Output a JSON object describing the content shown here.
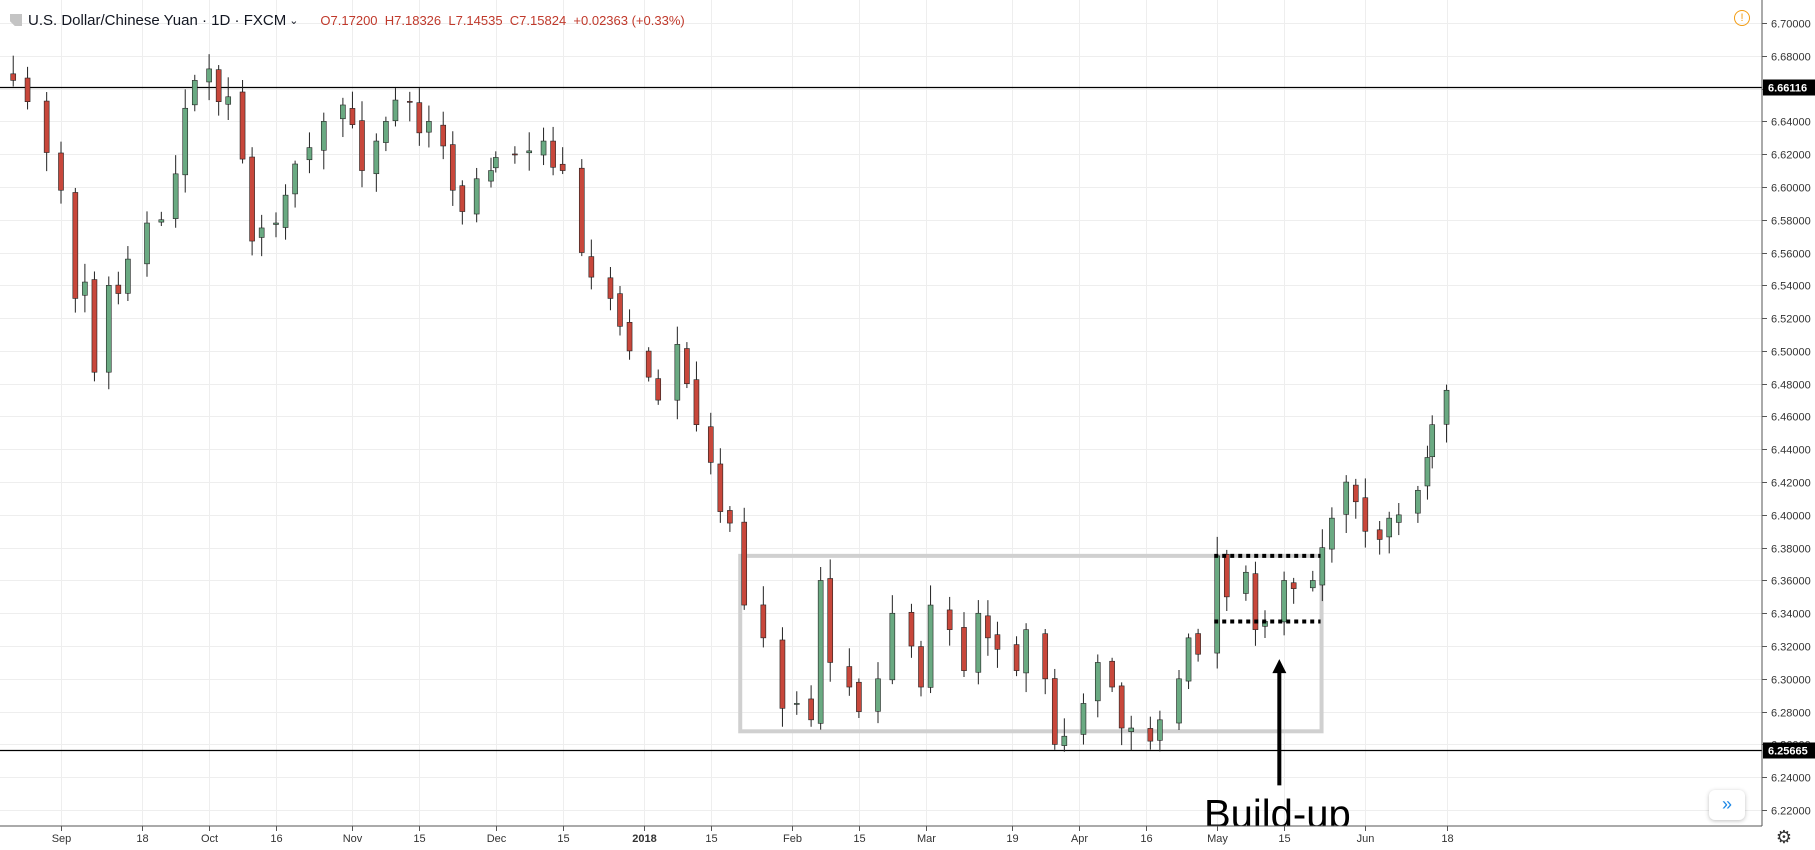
{
  "header": {
    "symbol": "U.S. Dollar/Chinese Yuan",
    "interval": "1D",
    "broker": "FXCM",
    "ohlc": "O7.17200  H7.18326  L7.14535  C7.15824  +0.02363 (+0.33%)"
  },
  "icons": {
    "symbol_marker": "flag-icon",
    "dropdown": "chevron-down-icon",
    "alert": "alert-icon",
    "scroll": "double-chevron-right-icon",
    "settings": "gear-icon"
  },
  "colors": {
    "up": "#6aaa82",
    "down": "#c8473b",
    "grid": "#eeeeee",
    "line": "#000000",
    "box": "#d0d0d0",
    "axis_text": "#333333"
  },
  "chart_data": {
    "type": "candlestick",
    "ylim": [
      6.21,
      6.71
    ],
    "y_ticks": [
      6.22,
      6.24,
      6.26,
      6.28,
      6.3,
      6.32,
      6.34,
      6.36,
      6.38,
      6.4,
      6.42,
      6.44,
      6.46,
      6.48,
      6.5,
      6.52,
      6.54,
      6.56,
      6.58,
      6.6,
      6.62,
      6.64,
      6.66,
      6.68,
      6.7
    ],
    "x_ticks": [
      "Sep",
      "18",
      "Oct",
      "16",
      "Nov",
      "15",
      "Dec",
      "15",
      "2018",
      "15",
      "Feb",
      "15",
      "Mar",
      "19",
      "Apr",
      "16",
      "May",
      "15",
      "Jun",
      "18"
    ],
    "horizontal_lines": [
      {
        "value": 6.66116,
        "label": "6.66116"
      },
      {
        "value": 6.25665,
        "label": "6.25665"
      }
    ],
    "range_box": {
      "start": "2018-01-22",
      "end": "2018-05-22",
      "low": 6.268,
      "high": 6.375
    },
    "buildup_box": {
      "start": "2018-05-01",
      "end": "2018-05-22",
      "low": 6.335,
      "high": 6.375
    },
    "annotation": {
      "text": "Build-up",
      "date": "2018-05-14",
      "value_tip": 6.312,
      "value_base": 6.235
    },
    "approx_close": [
      [
        "2017-08-22",
        6.665
      ],
      [
        "2017-08-25",
        6.652
      ],
      [
        "2017-08-29",
        6.621
      ],
      [
        "2017-09-01",
        6.598
      ],
      [
        "2017-09-04",
        6.532
      ],
      [
        "2017-09-06",
        6.542
      ],
      [
        "2017-09-08",
        6.487
      ],
      [
        "2017-09-11",
        6.54
      ],
      [
        "2017-09-13",
        6.535
      ],
      [
        "2017-09-15",
        6.556
      ],
      [
        "2017-09-19",
        6.578
      ],
      [
        "2017-09-22",
        6.58
      ],
      [
        "2017-09-25",
        6.608
      ],
      [
        "2017-09-27",
        6.648
      ],
      [
        "2017-09-29",
        6.665
      ],
      [
        "2017-10-02",
        6.672
      ],
      [
        "2017-10-04",
        6.652
      ],
      [
        "2017-10-06",
        6.655
      ],
      [
        "2017-10-09",
        6.617
      ],
      [
        "2017-10-11",
        6.567
      ],
      [
        "2017-10-13",
        6.575
      ],
      [
        "2017-10-16",
        6.578
      ],
      [
        "2017-10-18",
        6.595
      ],
      [
        "2017-10-20",
        6.614
      ],
      [
        "2017-10-23",
        6.624
      ],
      [
        "2017-10-26",
        6.64
      ],
      [
        "2017-10-30",
        6.65
      ],
      [
        "2017-11-01",
        6.638
      ],
      [
        "2017-11-03",
        6.61
      ],
      [
        "2017-11-06",
        6.628
      ],
      [
        "2017-11-08",
        6.64
      ],
      [
        "2017-11-10",
        6.653
      ],
      [
        "2017-11-13",
        6.652
      ],
      [
        "2017-11-15",
        6.633
      ],
      [
        "2017-11-17",
        6.64
      ],
      [
        "2017-11-20",
        6.625
      ],
      [
        "2017-11-22",
        6.598
      ],
      [
        "2017-11-24",
        6.585
      ],
      [
        "2017-11-27",
        6.605
      ],
      [
        "2017-11-30",
        6.61
      ],
      [
        "2017-12-01",
        6.618
      ],
      [
        "2017-12-05",
        6.62
      ],
      [
        "2017-12-08",
        6.622
      ],
      [
        "2017-12-11",
        6.628
      ],
      [
        "2017-12-13",
        6.612
      ],
      [
        "2017-12-15",
        6.61
      ],
      [
        "2017-12-19",
        6.56
      ],
      [
        "2017-12-21",
        6.545
      ],
      [
        "2017-12-25",
        6.532
      ],
      [
        "2017-12-27",
        6.515
      ],
      [
        "2017-12-29",
        6.5
      ],
      [
        "2018-01-02",
        6.484
      ],
      [
        "2018-01-04",
        6.47
      ],
      [
        "2018-01-08",
        6.504
      ],
      [
        "2018-01-10",
        6.48
      ],
      [
        "2018-01-12",
        6.455
      ],
      [
        "2018-01-15",
        6.432
      ],
      [
        "2018-01-17",
        6.402
      ],
      [
        "2018-01-19",
        6.395
      ],
      [
        "2018-01-22",
        6.345
      ],
      [
        "2018-01-26",
        6.325
      ],
      [
        "2018-01-30",
        6.282
      ],
      [
        "2018-02-02",
        6.285
      ],
      [
        "2018-02-05",
        6.275
      ],
      [
        "2018-02-07",
        6.36
      ],
      [
        "2018-02-09",
        6.31
      ],
      [
        "2018-02-13",
        6.295
      ],
      [
        "2018-02-15",
        6.28
      ],
      [
        "2018-02-19",
        6.3
      ],
      [
        "2018-02-22",
        6.34
      ],
      [
        "2018-02-26",
        6.32
      ],
      [
        "2018-02-28",
        6.295
      ],
      [
        "2018-03-02",
        6.345
      ],
      [
        "2018-03-06",
        6.33
      ],
      [
        "2018-03-09",
        6.305
      ],
      [
        "2018-03-12",
        6.34
      ],
      [
        "2018-03-14",
        6.325
      ],
      [
        "2018-03-16",
        6.318
      ],
      [
        "2018-03-20",
        6.305
      ],
      [
        "2018-03-22",
        6.33
      ],
      [
        "2018-03-26",
        6.3
      ],
      [
        "2018-03-28",
        6.26
      ],
      [
        "2018-03-30",
        6.265
      ],
      [
        "2018-04-03",
        6.285
      ],
      [
        "2018-04-06",
        6.31
      ],
      [
        "2018-04-09",
        6.295
      ],
      [
        "2018-04-11",
        6.27
      ],
      [
        "2018-04-13",
        6.27
      ],
      [
        "2018-04-17",
        6.262
      ],
      [
        "2018-04-19",
        6.275
      ],
      [
        "2018-04-23",
        6.3
      ],
      [
        "2018-04-25",
        6.325
      ],
      [
        "2018-04-27",
        6.315
      ],
      [
        "2018-05-01",
        6.375
      ],
      [
        "2018-05-03",
        6.35
      ],
      [
        "2018-05-07",
        6.365
      ],
      [
        "2018-05-09",
        6.33
      ],
      [
        "2018-05-11",
        6.335
      ],
      [
        "2018-05-15",
        6.36
      ],
      [
        "2018-05-17",
        6.355
      ],
      [
        "2018-05-21",
        6.36
      ],
      [
        "2018-05-23",
        6.38
      ],
      [
        "2018-05-25",
        6.398
      ],
      [
        "2018-05-28",
        6.42
      ],
      [
        "2018-05-30",
        6.408
      ],
      [
        "2018-06-01",
        6.39
      ],
      [
        "2018-06-04",
        6.385
      ],
      [
        "2018-06-06",
        6.398
      ],
      [
        "2018-06-08",
        6.4
      ],
      [
        "2018-06-12",
        6.415
      ],
      [
        "2018-06-14",
        6.435
      ],
      [
        "2018-06-15",
        6.455
      ],
      [
        "2018-06-18",
        6.476
      ]
    ]
  }
}
